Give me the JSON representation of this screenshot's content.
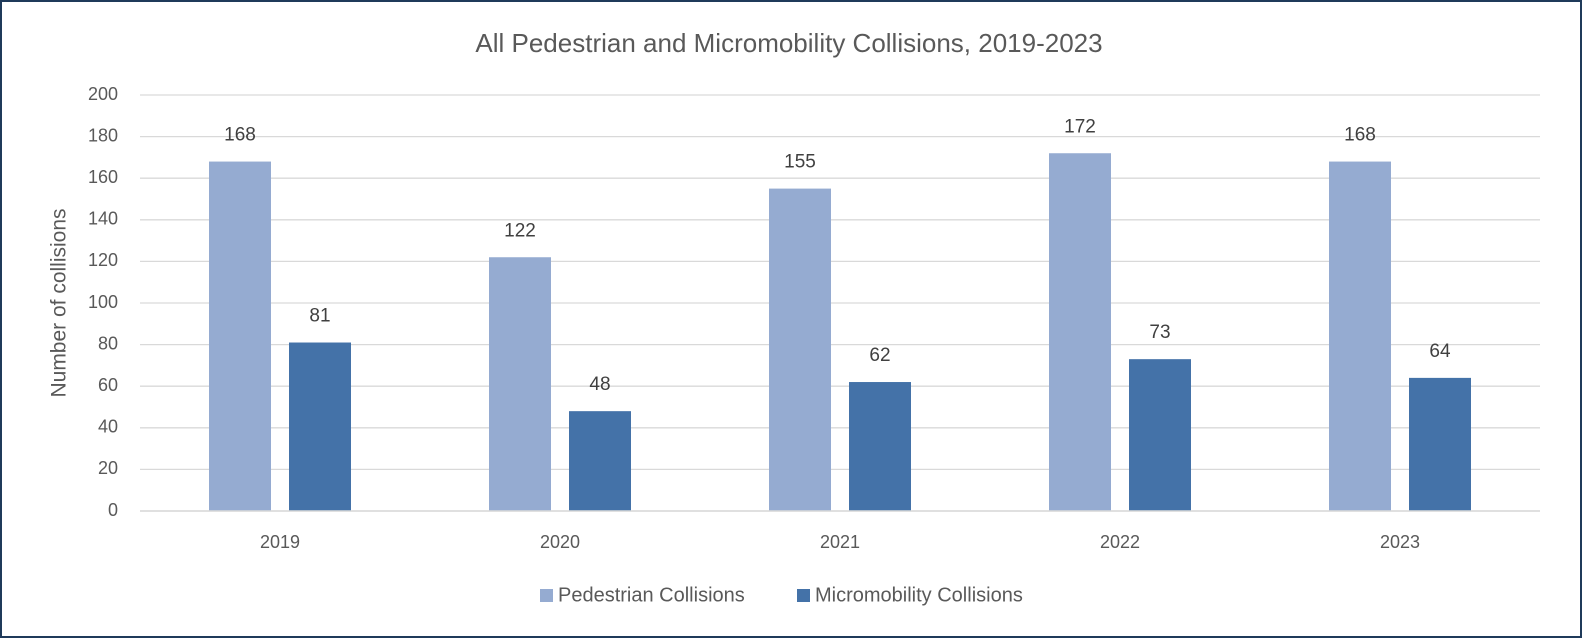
{
  "chart_data": {
    "type": "bar",
    "title": "All Pedestrian and Micromobility Collisions, 2019-2023",
    "y_label": "Number of collisions",
    "categories": [
      "2019",
      "2020",
      "2021",
      "2022",
      "2023"
    ],
    "series": [
      {
        "name": "Pedestrian Collisions",
        "color": "#95abd1",
        "values": [
          168,
          122,
          155,
          172,
          168
        ]
      },
      {
        "name": "Micromobility Collisions",
        "color": "#4472a8",
        "values": [
          81,
          48,
          62,
          73,
          64
        ]
      }
    ],
    "ylim": [
      0,
      200
    ],
    "yticks": [
      0,
      20,
      40,
      60,
      80,
      100,
      120,
      140,
      160,
      180,
      200
    ],
    "grid": true,
    "legend": "bottom",
    "data_labels": true
  }
}
